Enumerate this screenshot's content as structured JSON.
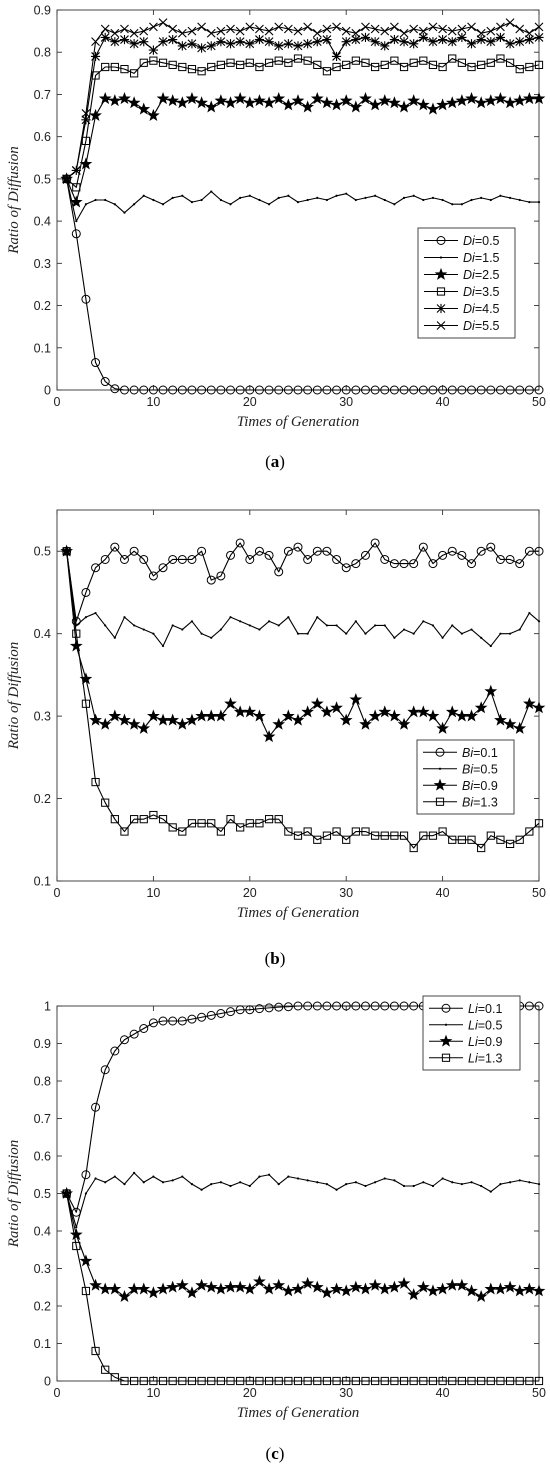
{
  "chart_data": [
    {
      "type": "line",
      "panel_label": "a",
      "xlabel": "Times of Generation",
      "ylabel": "Ratio of Diffusion",
      "xlim": [
        0,
        50
      ],
      "ylim": [
        0,
        0.9
      ],
      "xticks": [
        0,
        10,
        20,
        30,
        40,
        50
      ],
      "yticks": [
        0,
        0.1,
        0.2,
        0.3,
        0.4,
        0.5,
        0.6,
        0.7,
        0.8,
        0.9
      ],
      "legend_position": "middle-right",
      "legend_var": "Di",
      "series": [
        {
          "name": "=0.5",
          "marker": "circle",
          "values": [
            0.5,
            0.37,
            0.215,
            0.065,
            0.02,
            0.003,
            0,
            0,
            0,
            0,
            0,
            0,
            0,
            0,
            0,
            0,
            0,
            0,
            0,
            0,
            0,
            0,
            0,
            0,
            0,
            0,
            0,
            0,
            0,
            0,
            0,
            0,
            0,
            0,
            0,
            0,
            0,
            0,
            0,
            0,
            0,
            0,
            0,
            0,
            0,
            0,
            0,
            0,
            0,
            0
          ]
        },
        {
          "name": "=1.5",
          "marker": "dot",
          "values": [
            0.5,
            0.4,
            0.44,
            0.45,
            0.45,
            0.44,
            0.42,
            0.44,
            0.46,
            0.45,
            0.44,
            0.455,
            0.46,
            0.445,
            0.45,
            0.47,
            0.45,
            0.44,
            0.455,
            0.46,
            0.45,
            0.44,
            0.455,
            0.46,
            0.445,
            0.45,
            0.455,
            0.45,
            0.46,
            0.465,
            0.45,
            0.455,
            0.46,
            0.45,
            0.44,
            0.455,
            0.46,
            0.45,
            0.455,
            0.45,
            0.44,
            0.44,
            0.45,
            0.455,
            0.45,
            0.46,
            0.455,
            0.45,
            0.445,
            0.445
          ]
        },
        {
          "name": "=2.5",
          "marker": "star",
          "values": [
            0.5,
            0.445,
            0.535,
            0.65,
            0.69,
            0.685,
            0.69,
            0.68,
            0.665,
            0.65,
            0.69,
            0.685,
            0.68,
            0.69,
            0.68,
            0.67,
            0.685,
            0.68,
            0.69,
            0.68,
            0.685,
            0.68,
            0.69,
            0.675,
            0.685,
            0.67,
            0.69,
            0.68,
            0.675,
            0.685,
            0.67,
            0.69,
            0.675,
            0.685,
            0.68,
            0.67,
            0.685,
            0.675,
            0.665,
            0.675,
            0.68,
            0.685,
            0.69,
            0.68,
            0.685,
            0.69,
            0.68,
            0.685,
            0.69,
            0.69
          ]
        },
        {
          "name": "=3.5",
          "marker": "square",
          "values": [
            0.5,
            0.48,
            0.59,
            0.745,
            0.765,
            0.765,
            0.76,
            0.75,
            0.775,
            0.78,
            0.775,
            0.77,
            0.765,
            0.76,
            0.755,
            0.765,
            0.77,
            0.775,
            0.77,
            0.775,
            0.765,
            0.775,
            0.78,
            0.775,
            0.785,
            0.78,
            0.77,
            0.755,
            0.765,
            0.77,
            0.78,
            0.775,
            0.765,
            0.77,
            0.78,
            0.765,
            0.775,
            0.78,
            0.77,
            0.765,
            0.785,
            0.775,
            0.765,
            0.77,
            0.775,
            0.785,
            0.775,
            0.76,
            0.765,
            0.77
          ]
        },
        {
          "name": "=4.5",
          "marker": "asterisk",
          "values": [
            0.5,
            0.52,
            0.64,
            0.79,
            0.835,
            0.825,
            0.83,
            0.82,
            0.825,
            0.805,
            0.825,
            0.83,
            0.815,
            0.82,
            0.81,
            0.815,
            0.825,
            0.82,
            0.825,
            0.82,
            0.83,
            0.825,
            0.815,
            0.82,
            0.815,
            0.82,
            0.825,
            0.83,
            0.79,
            0.825,
            0.83,
            0.835,
            0.825,
            0.815,
            0.83,
            0.825,
            0.82,
            0.835,
            0.825,
            0.83,
            0.825,
            0.835,
            0.82,
            0.83,
            0.825,
            0.835,
            0.82,
            0.825,
            0.83,
            0.835
          ]
        },
        {
          "name": "=5.5",
          "marker": "x",
          "values": [
            0.5,
            0.52,
            0.655,
            0.825,
            0.855,
            0.845,
            0.855,
            0.845,
            0.85,
            0.86,
            0.87,
            0.855,
            0.845,
            0.85,
            0.86,
            0.845,
            0.85,
            0.855,
            0.85,
            0.86,
            0.855,
            0.85,
            0.86,
            0.855,
            0.85,
            0.86,
            0.845,
            0.855,
            0.86,
            0.85,
            0.845,
            0.86,
            0.855,
            0.85,
            0.86,
            0.845,
            0.855,
            0.85,
            0.86,
            0.855,
            0.85,
            0.855,
            0.86,
            0.845,
            0.85,
            0.86,
            0.87,
            0.855,
            0.845,
            0.86
          ]
        }
      ]
    },
    {
      "type": "line",
      "panel_label": "b",
      "xlabel": "Times of Generation",
      "ylabel": "Ratio of Diffusion",
      "xlim": [
        0,
        50
      ],
      "ylim": [
        0.1,
        0.55
      ],
      "xticks": [
        0,
        10,
        20,
        30,
        40,
        50
      ],
      "yticks": [
        0.1,
        0.2,
        0.3,
        0.4,
        0.5
      ],
      "legend_position": "lower-right",
      "legend_var": "Bi",
      "series": [
        {
          "name": "=0.1",
          "marker": "circle",
          "values": [
            0.5,
            0.415,
            0.45,
            0.48,
            0.49,
            0.505,
            0.49,
            0.5,
            0.49,
            0.47,
            0.48,
            0.49,
            0.49,
            0.49,
            0.5,
            0.465,
            0.47,
            0.495,
            0.51,
            0.49,
            0.5,
            0.495,
            0.475,
            0.5,
            0.505,
            0.49,
            0.5,
            0.5,
            0.49,
            0.48,
            0.485,
            0.495,
            0.51,
            0.49,
            0.485,
            0.485,
            0.485,
            0.505,
            0.485,
            0.495,
            0.5,
            0.495,
            0.485,
            0.5,
            0.505,
            0.49,
            0.49,
            0.485,
            0.5,
            0.5
          ]
        },
        {
          "name": "=0.5",
          "marker": "dot",
          "values": [
            0.5,
            0.41,
            0.42,
            0.425,
            0.41,
            0.395,
            0.42,
            0.41,
            0.405,
            0.4,
            0.385,
            0.41,
            0.405,
            0.415,
            0.4,
            0.395,
            0.405,
            0.42,
            0.415,
            0.41,
            0.405,
            0.415,
            0.41,
            0.42,
            0.4,
            0.4,
            0.42,
            0.41,
            0.41,
            0.4,
            0.415,
            0.4,
            0.41,
            0.41,
            0.395,
            0.405,
            0.4,
            0.415,
            0.41,
            0.395,
            0.41,
            0.4,
            0.405,
            0.395,
            0.385,
            0.4,
            0.4,
            0.405,
            0.425,
            0.415
          ]
        },
        {
          "name": "=0.9",
          "marker": "star",
          "values": [
            0.5,
            0.385,
            0.345,
            0.295,
            0.29,
            0.3,
            0.295,
            0.29,
            0.285,
            0.3,
            0.295,
            0.295,
            0.29,
            0.295,
            0.3,
            0.3,
            0.3,
            0.315,
            0.305,
            0.305,
            0.3,
            0.275,
            0.29,
            0.3,
            0.295,
            0.305,
            0.315,
            0.305,
            0.31,
            0.295,
            0.32,
            0.29,
            0.3,
            0.305,
            0.3,
            0.29,
            0.305,
            0.305,
            0.3,
            0.285,
            0.305,
            0.3,
            0.3,
            0.31,
            0.33,
            0.295,
            0.29,
            0.285,
            0.315,
            0.31
          ]
        },
        {
          "name": "=1.3",
          "marker": "square",
          "values": [
            0.5,
            0.4,
            0.315,
            0.22,
            0.195,
            0.175,
            0.16,
            0.175,
            0.175,
            0.18,
            0.175,
            0.165,
            0.16,
            0.17,
            0.17,
            0.17,
            0.16,
            0.175,
            0.165,
            0.17,
            0.17,
            0.175,
            0.175,
            0.16,
            0.155,
            0.16,
            0.15,
            0.155,
            0.16,
            0.15,
            0.16,
            0.16,
            0.155,
            0.155,
            0.155,
            0.155,
            0.14,
            0.155,
            0.155,
            0.16,
            0.15,
            0.15,
            0.15,
            0.14,
            0.155,
            0.15,
            0.145,
            0.15,
            0.16,
            0.17
          ]
        }
      ]
    },
    {
      "type": "line",
      "panel_label": "c",
      "xlabel": "Times of Generation",
      "ylabel": "Ratio of Diffusion",
      "xlim": [
        0,
        50
      ],
      "ylim": [
        0,
        1
      ],
      "xticks": [
        0,
        10,
        20,
        30,
        40,
        50
      ],
      "yticks": [
        0,
        0.1,
        0.2,
        0.3,
        0.4,
        0.5,
        0.6,
        0.7,
        0.8,
        0.9,
        1
      ],
      "legend_position": "top-right",
      "legend_var": "Li",
      "series": [
        {
          "name": "=0.1",
          "marker": "circle",
          "values": [
            0.5,
            0.45,
            0.55,
            0.73,
            0.83,
            0.88,
            0.91,
            0.925,
            0.94,
            0.955,
            0.96,
            0.96,
            0.96,
            0.965,
            0.97,
            0.975,
            0.98,
            0.985,
            0.99,
            0.99,
            0.993,
            0.995,
            0.997,
            0.998,
            1,
            1,
            1,
            1,
            1,
            1,
            1,
            1,
            1,
            1,
            1,
            1,
            1,
            1,
            1,
            1,
            1,
            1,
            1,
            1,
            1,
            1,
            1,
            1,
            1,
            1
          ]
        },
        {
          "name": "=0.5",
          "marker": "dot",
          "values": [
            0.5,
            0.41,
            0.5,
            0.54,
            0.53,
            0.545,
            0.525,
            0.555,
            0.53,
            0.545,
            0.53,
            0.535,
            0.545,
            0.525,
            0.51,
            0.525,
            0.53,
            0.52,
            0.53,
            0.52,
            0.545,
            0.55,
            0.525,
            0.545,
            0.54,
            0.535,
            0.53,
            0.525,
            0.51,
            0.525,
            0.53,
            0.52,
            0.53,
            0.54,
            0.535,
            0.52,
            0.52,
            0.53,
            0.52,
            0.54,
            0.53,
            0.525,
            0.53,
            0.52,
            0.505,
            0.525,
            0.53,
            0.535,
            0.53,
            0.525
          ]
        },
        {
          "name": "=0.9",
          "marker": "star",
          "values": [
            0.5,
            0.39,
            0.32,
            0.255,
            0.245,
            0.245,
            0.225,
            0.245,
            0.245,
            0.235,
            0.245,
            0.25,
            0.255,
            0.235,
            0.255,
            0.25,
            0.245,
            0.25,
            0.25,
            0.245,
            0.265,
            0.245,
            0.255,
            0.24,
            0.245,
            0.26,
            0.25,
            0.235,
            0.245,
            0.24,
            0.25,
            0.245,
            0.255,
            0.245,
            0.25,
            0.26,
            0.23,
            0.25,
            0.24,
            0.245,
            0.255,
            0.255,
            0.24,
            0.225,
            0.245,
            0.245,
            0.25,
            0.24,
            0.245,
            0.24
          ]
        },
        {
          "name": "=1.3",
          "marker": "square",
          "values": [
            0.5,
            0.36,
            0.24,
            0.08,
            0.03,
            0.01,
            0,
            0,
            0,
            0,
            0,
            0,
            0,
            0,
            0,
            0,
            0,
            0,
            0,
            0,
            0,
            0,
            0,
            0,
            0,
            0,
            0,
            0,
            0,
            0,
            0,
            0,
            0,
            0,
            0,
            0,
            0,
            0,
            0,
            0,
            0,
            0,
            0,
            0,
            0,
            0,
            0,
            0,
            0,
            0
          ]
        }
      ]
    }
  ]
}
